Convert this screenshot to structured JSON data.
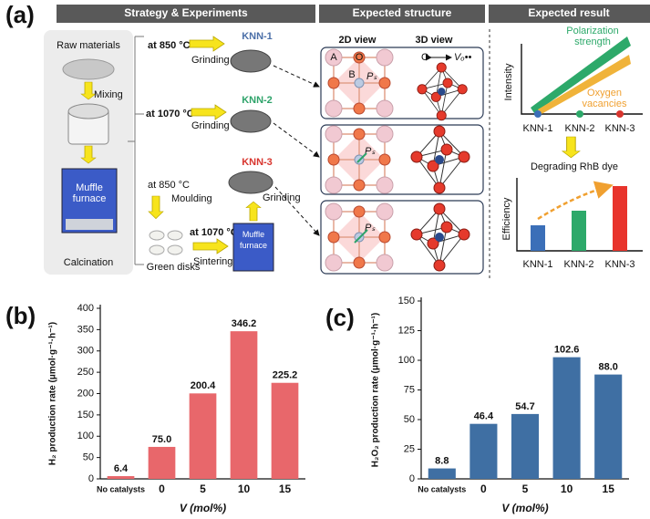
{
  "panel_a": {
    "label": "(a)",
    "headers": [
      "Strategy & Experiments",
      "Expected structure",
      "Expected result"
    ],
    "synthesis": {
      "raw_materials": "Raw materials",
      "mixing": "Mixing",
      "furnace_label": "Muffle furnace",
      "calcination": "Calcination",
      "route_1": {
        "temperature": "at 850 °C",
        "step": "Grinding",
        "product": "KNN-1"
      },
      "route_2": {
        "temperature": "at 1070 °C",
        "step": "Grinding",
        "product": "KNN-2"
      },
      "route_3": {
        "temperature_1": "at 850 °C",
        "step_1": "Moulding",
        "intermediate": "Green disks",
        "temperature_2": "at 1070 °C",
        "step_2": "Sintering",
        "furnace_label": "Muffle furnace",
        "step_3": "Grinding",
        "product": "KNN-3"
      }
    },
    "structure": {
      "view_2d": "2D view",
      "view_3d": "3D view",
      "site_labels": [
        "A",
        "B",
        "O"
      ],
      "polarization": "Pₛ",
      "vacancy_from": "O",
      "vacancy_to": "Vₒ••"
    },
    "result": {
      "intensity_axis": "Intensity",
      "polarization_trend": "Polarization strength",
      "vacancy_trend": "Oxygen vacancies",
      "samples": [
        "KNN-1",
        "KNN-2",
        "KNN-3"
      ],
      "efficiency_title": "Degrading RhB dye",
      "efficiency_axis": "Efficiency"
    }
  },
  "chart_data": [
    {
      "type": "bar",
      "panel_label": "(b)",
      "y_label": "H₂ production rate (μmol·g⁻¹·h⁻¹)",
      "x_label": "V (mol%)",
      "categories": [
        "No catalysts",
        "0",
        "5",
        "10",
        "15"
      ],
      "values": [
        6.4,
        75.0,
        200.4,
        346.2,
        225.2
      ],
      "value_labels": [
        "6.4",
        "75.0",
        "200.4",
        "346.2",
        "225.2"
      ],
      "color": "#e8676b",
      "ylim": [
        0,
        400
      ],
      "yticks": [
        0,
        50,
        100,
        150,
        200,
        250,
        300,
        350,
        400
      ]
    },
    {
      "type": "bar",
      "panel_label": "(c)",
      "y_label": "H₂O₂ production rate (μmol·g⁻¹·h⁻¹)",
      "x_label": "V (mol%)",
      "categories": [
        "No catalysts",
        "0",
        "5",
        "10",
        "15"
      ],
      "values": [
        8.8,
        46.4,
        54.7,
        102.6,
        88.0
      ],
      "value_labels": [
        "8.8",
        "46.4",
        "54.7",
        "102.6",
        "88.0"
      ],
      "color": "#3f6fa3",
      "ylim": [
        0,
        150
      ],
      "yticks": [
        0,
        25,
        50,
        75,
        100,
        125,
        150
      ]
    }
  ]
}
